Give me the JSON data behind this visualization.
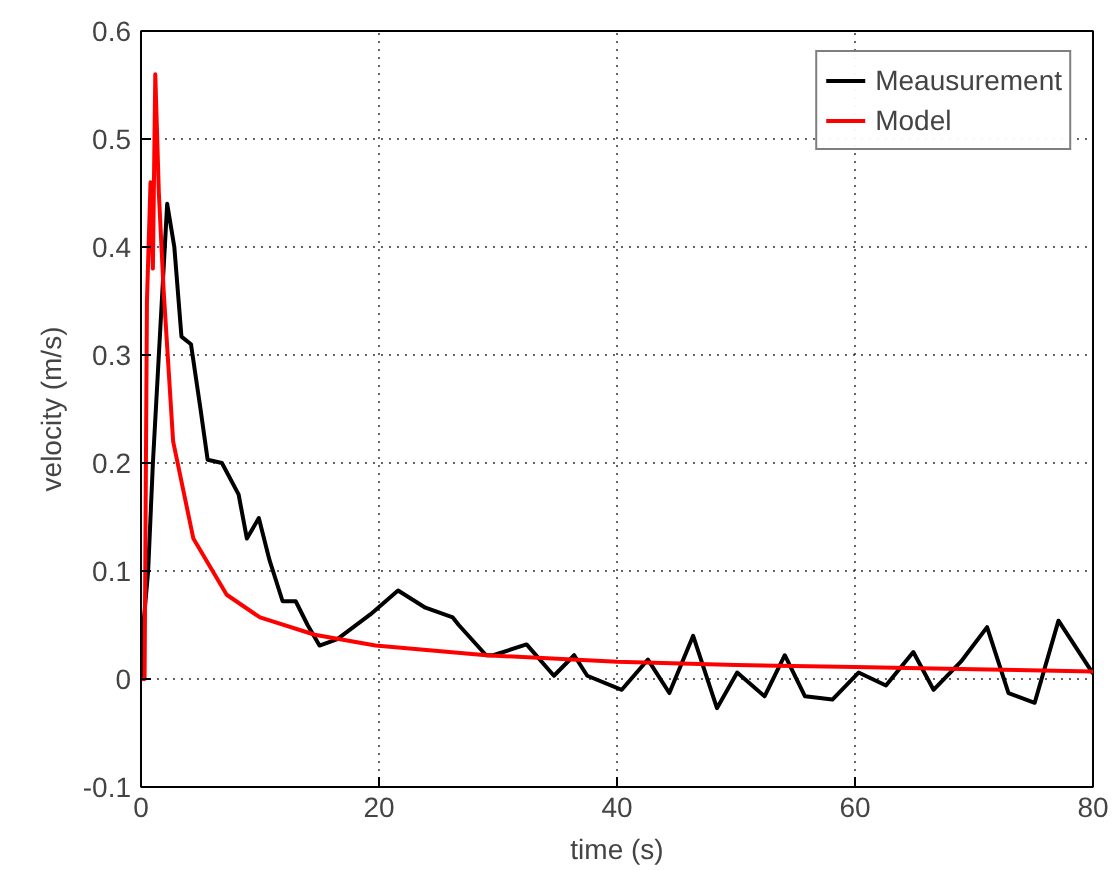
{
  "chart_data": {
    "type": "line",
    "xlabel": "time (s)",
    "ylabel": "velocity (m/s)",
    "xlim": [
      0,
      80
    ],
    "ylim": [
      -0.1,
      0.6
    ],
    "xticks": [
      0,
      20,
      40,
      60,
      80
    ],
    "yticks": [
      -0.1,
      0,
      0.1,
      0.2,
      0.3,
      0.4,
      0.5,
      0.6
    ],
    "grid": true,
    "legend": "top right",
    "marker": "none",
    "line_style": "solid",
    "series": [
      {
        "name": "Meausurement",
        "color": "#000000",
        "x": [
          0,
          0.2,
          0.6,
          1.0,
          1.5,
          2.2,
          2.8,
          3.4,
          4.2,
          5.0,
          5.6,
          6.8,
          8.2,
          8.9,
          9.9,
          10.8,
          11.9,
          13.0,
          14.0,
          15.0,
          16.5,
          19.3,
          21.6,
          23.9,
          26.2,
          26.7,
          29.0,
          29.6,
          32.4,
          34.7,
          36.4,
          37.5,
          40.4,
          42.6,
          44.4,
          46.4,
          48.4,
          50.1,
          52.4,
          54.1,
          55.8,
          58.1,
          60.3,
          62.6,
          64.9,
          66.6,
          68.9,
          71.1,
          72.9,
          75.1,
          77.1,
          79.7,
          80
        ],
        "values": [
          0,
          0.05,
          0.1,
          0.2,
          0.3,
          0.44,
          0.4,
          0.317,
          0.31,
          0.25,
          0.203,
          0.2,
          0.171,
          0.13,
          0.149,
          0.11,
          0.072,
          0.072,
          0.05,
          0.031,
          0.037,
          0.06,
          0.082,
          0.066,
          0.057,
          0.05,
          0.022,
          0.022,
          0.032,
          0.003,
          0.022,
          0.003,
          -0.01,
          0.018,
          -0.013,
          0.04,
          -0.027,
          0.006,
          -0.016,
          0.022,
          -0.016,
          -0.019,
          0.006,
          -0.006,
          0.025,
          -0.01,
          0.016,
          0.048,
          -0.013,
          -0.022,
          0.054,
          0.01,
          0.005
        ]
      },
      {
        "name": "Model",
        "color": "#ff0000",
        "x": [
          0,
          0.3,
          0.5,
          0.8,
          1.0,
          1.2,
          1.5,
          1.9,
          2.7,
          4.4,
          7.2,
          10.0,
          14.6,
          19.7,
          29,
          40,
          50,
          60,
          70,
          80
        ],
        "values": [
          0,
          0,
          0.35,
          0.46,
          0.38,
          0.56,
          0.45,
          0.36,
          0.22,
          0.13,
          0.078,
          0.057,
          0.041,
          0.031,
          0.022,
          0.016,
          0.013,
          0.011,
          0.009,
          0.007
        ]
      }
    ]
  }
}
